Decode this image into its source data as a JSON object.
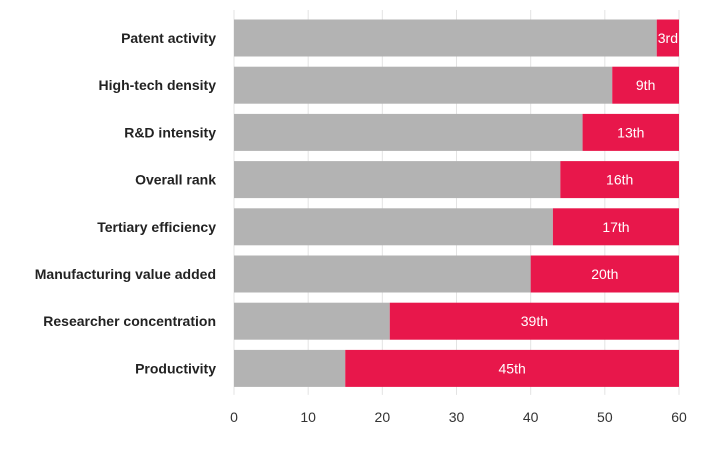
{
  "chart_data": {
    "type": "bar",
    "orientation": "horizontal",
    "stacked": true,
    "categories": [
      "Patent activity",
      "High-tech density",
      "R&D intensity",
      "Overall rank",
      "Tertiary efficiency",
      "Manufacturing value added",
      "Researcher concentration",
      "Productivity"
    ],
    "series": [
      {
        "values": [
          57,
          51,
          47,
          44,
          43,
          40,
          21,
          15
        ]
      },
      {
        "values": [
          3,
          9,
          13,
          16,
          17,
          20,
          39,
          45
        ]
      }
    ],
    "data_labels": [
      "3rd",
      "9th",
      "13th",
      "16th",
      "17th",
      "20th",
      "39th",
      "45th"
    ],
    "xlim": [
      0,
      60
    ],
    "x_ticks": [
      0,
      10,
      20,
      30,
      40,
      50,
      60
    ],
    "grid": true,
    "legend": "none",
    "colors": {
      "background_bar": "#b3b3b3",
      "rank_bar": "#e8174b",
      "grid": "#e3e3e3"
    }
  }
}
